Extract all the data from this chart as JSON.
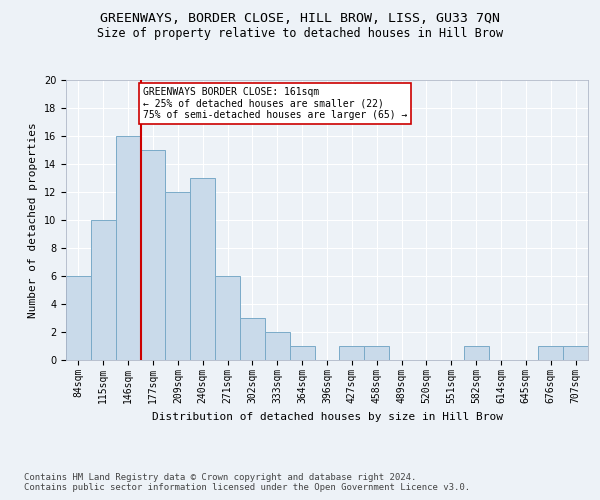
{
  "title": "GREENWAYS, BORDER CLOSE, HILL BROW, LISS, GU33 7QN",
  "subtitle": "Size of property relative to detached houses in Hill Brow",
  "xlabel": "Distribution of detached houses by size in Hill Brow",
  "ylabel": "Number of detached properties",
  "bar_color": "#c9daea",
  "bar_edge_color": "#7aaac8",
  "categories": [
    "84sqm",
    "115sqm",
    "146sqm",
    "177sqm",
    "209sqm",
    "240sqm",
    "271sqm",
    "302sqm",
    "333sqm",
    "364sqm",
    "396sqm",
    "427sqm",
    "458sqm",
    "489sqm",
    "520sqm",
    "551sqm",
    "582sqm",
    "614sqm",
    "645sqm",
    "676sqm",
    "707sqm"
  ],
  "values": [
    6,
    10,
    16,
    15,
    12,
    13,
    6,
    3,
    2,
    1,
    0,
    1,
    1,
    0,
    0,
    0,
    1,
    0,
    0,
    1,
    1
  ],
  "ylim": [
    0,
    20
  ],
  "yticks": [
    0,
    2,
    4,
    6,
    8,
    10,
    12,
    14,
    16,
    18,
    20
  ],
  "vline_x_index": 2,
  "vline_color": "#cc0000",
  "annotation_text": "GREENWAYS BORDER CLOSE: 161sqm\n← 25% of detached houses are smaller (22)\n75% of semi-detached houses are larger (65) →",
  "annotation_box_color": "#ffffff",
  "annotation_box_edge": "#cc0000",
  "footer1": "Contains HM Land Registry data © Crown copyright and database right 2024.",
  "footer2": "Contains public sector information licensed under the Open Government Licence v3.0.",
  "background_color": "#edf2f7",
  "grid_color": "#ffffff",
  "title_fontsize": 9.5,
  "subtitle_fontsize": 8.5,
  "ylabel_fontsize": 8,
  "xlabel_fontsize": 8,
  "tick_fontsize": 7,
  "annotation_fontsize": 7,
  "footer_fontsize": 6.5
}
